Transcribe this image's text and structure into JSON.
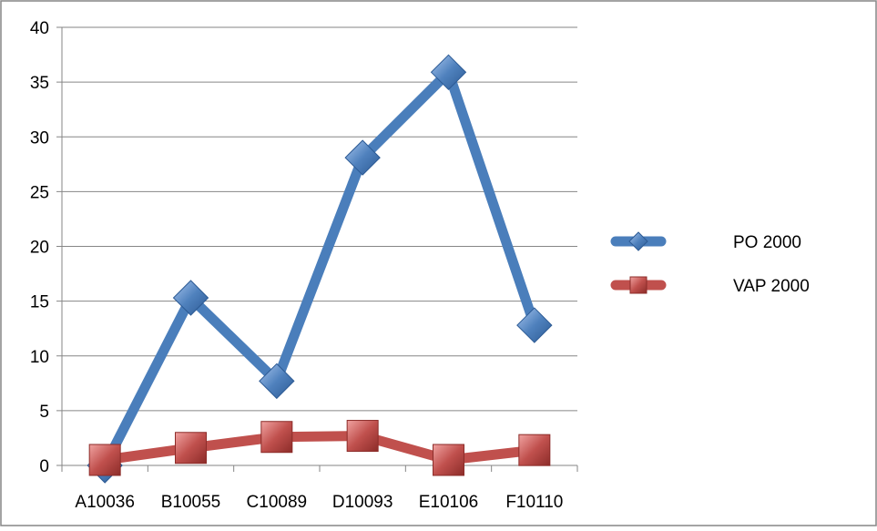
{
  "chart_data": {
    "type": "line",
    "categories": [
      "A10036",
      "B10055",
      "C10089",
      "D10093",
      "E10106",
      "F10110"
    ],
    "series": [
      {
        "name": "PO 2000",
        "values": [
          0,
          15.3,
          7.7,
          28.1,
          35.9,
          12.8
        ],
        "color": "#4a7ebb",
        "marker": "diamond"
      },
      {
        "name": "VAP 2000",
        "values": [
          0.5,
          1.6,
          2.6,
          2.7,
          0.5,
          1.4
        ],
        "color": "#c0504d",
        "marker": "square"
      }
    ],
    "ylim": [
      0,
      40
    ],
    "yticks": [
      "0",
      "5",
      "10",
      "15",
      "20",
      "25",
      "30",
      "35",
      "40"
    ],
    "grid": true,
    "legend_position": "right",
    "title": "",
    "xlabel": "",
    "ylabel": ""
  }
}
